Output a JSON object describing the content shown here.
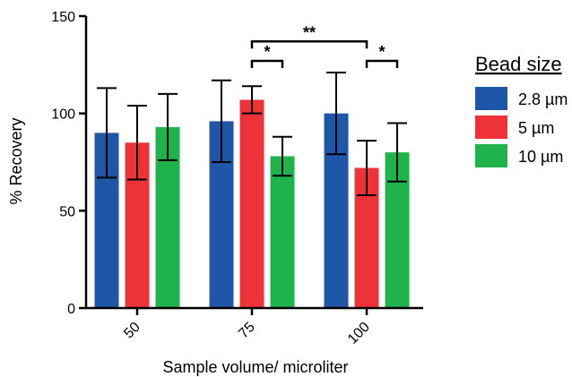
{
  "chart_data": {
    "type": "bar",
    "xlabel": "Sample volume/ microliter",
    "ylabel": "% Recovery",
    "ylim": [
      0,
      150
    ],
    "yticks": [
      "0",
      "50",
      "100",
      "150"
    ],
    "categories": [
      "50",
      "75",
      "100"
    ],
    "legend": {
      "title": "Bead size",
      "placement": "right"
    },
    "series": [
      {
        "name": "2.8 µm",
        "color": "#1f56a8",
        "values": [
          90,
          96,
          100
        ],
        "error": [
          23,
          21,
          21
        ]
      },
      {
        "name": "5 µm",
        "color": "#ee3338",
        "values": [
          85,
          107,
          72
        ],
        "error": [
          19,
          7,
          14
        ]
      },
      {
        "name": "10 µm",
        "color": "#20b24b",
        "values": [
          93,
          78,
          80
        ],
        "error": [
          17,
          10,
          15
        ]
      }
    ],
    "annotations": [
      {
        "label": "*",
        "category": "75",
        "from_series": 1,
        "to_series": 2,
        "y": 127
      },
      {
        "label": "*",
        "category": "100",
        "from_series": 1,
        "to_series": 2,
        "y": 127
      },
      {
        "label": "**",
        "category_from": "75",
        "category_to": "100",
        "from_series": 1,
        "to_series": 1,
        "y": 137
      }
    ]
  }
}
